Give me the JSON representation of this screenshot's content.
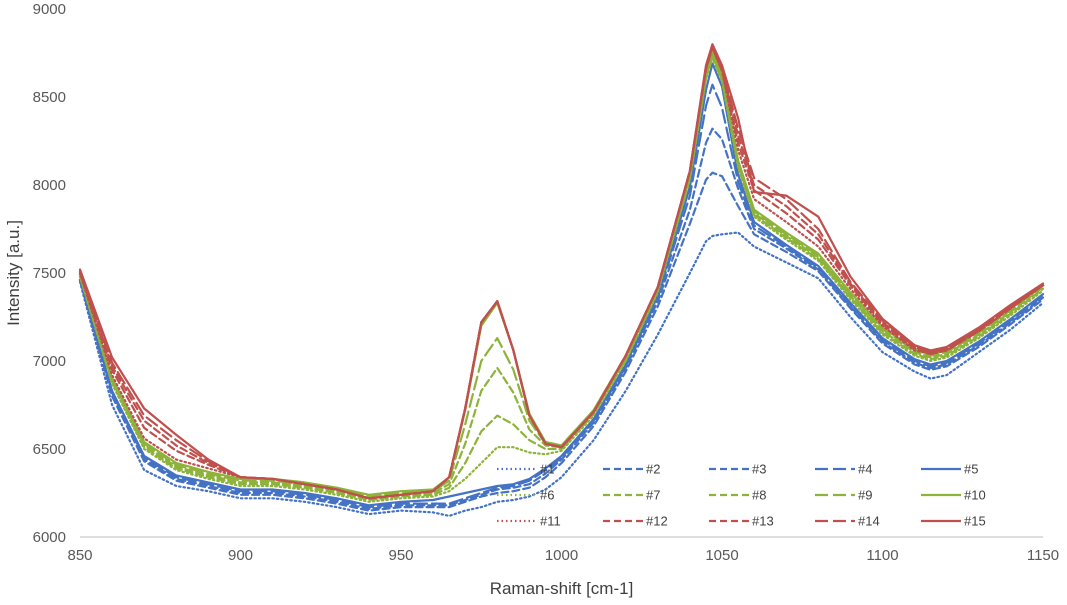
{
  "chart_data": {
    "type": "line",
    "xlabel": "Raman-shift [cm-1]",
    "ylabel": "Intensity [a.u.]",
    "xlim": [
      850,
      1150
    ],
    "ylim": [
      6000,
      9000
    ],
    "x_ticks": [
      850,
      900,
      950,
      1000,
      1050,
      1100,
      1150
    ],
    "y_ticks": [
      6000,
      6500,
      7000,
      7500,
      8000,
      8500,
      9000
    ],
    "grid": false,
    "legend_position": "bottom-right",
    "x": [
      850,
      860,
      870,
      880,
      890,
      900,
      910,
      920,
      930,
      940,
      950,
      960,
      965,
      970,
      975,
      980,
      985,
      990,
      995,
      1000,
      1010,
      1020,
      1030,
      1040,
      1045,
      1047,
      1050,
      1055,
      1060,
      1070,
      1080,
      1090,
      1100,
      1110,
      1115,
      1120,
      1130,
      1140,
      1150
    ],
    "series": [
      {
        "name": "#1",
        "color": "#4472C4",
        "dash": "dot",
        "values": [
          7450,
          6750,
          6380,
          6290,
          6260,
          6220,
          6220,
          6200,
          6170,
          6130,
          6150,
          6140,
          6120,
          6150,
          6170,
          6200,
          6210,
          6230,
          6270,
          6340,
          6550,
          6830,
          7150,
          7500,
          7680,
          7710,
          7720,
          7730,
          7650,
          7560,
          7470,
          7250,
          7050,
          6940,
          6900,
          6920,
          7050,
          7180,
          7330
        ]
      },
      {
        "name": "#2",
        "color": "#4472C4",
        "dash": "dash",
        "values": [
          7460,
          6800,
          6430,
          6320,
          6280,
          6240,
          6240,
          6220,
          6190,
          6150,
          6170,
          6170,
          6170,
          6200,
          6230,
          6250,
          6260,
          6280,
          6340,
          6420,
          6630,
          6940,
          7310,
          7780,
          8030,
          8070,
          8050,
          7880,
          7720,
          7620,
          7510,
          7300,
          7100,
          6980,
          6950,
          6970,
          7080,
          7210,
          7350
        ]
      },
      {
        "name": "#3",
        "color": "#4472C4",
        "dash": "dash",
        "values": [
          7460,
          6810,
          6440,
          6330,
          6290,
          6250,
          6250,
          6230,
          6200,
          6160,
          6180,
          6180,
          6180,
          6210,
          6240,
          6270,
          6280,
          6300,
          6360,
          6440,
          6650,
          6960,
          7340,
          7860,
          8240,
          8320,
          8260,
          7980,
          7750,
          7640,
          7520,
          7310,
          7110,
          6990,
          6960,
          6980,
          7090,
          7220,
          7360
        ]
      },
      {
        "name": "#4",
        "color": "#4472C4",
        "dash": "longdash",
        "values": [
          7460,
          6820,
          6450,
          6340,
          6300,
          6260,
          6260,
          6240,
          6210,
          6170,
          6190,
          6190,
          6190,
          6220,
          6250,
          6280,
          6290,
          6320,
          6380,
          6450,
          6660,
          6970,
          7360,
          7940,
          8450,
          8570,
          8440,
          8020,
          7770,
          7650,
          7530,
          7320,
          7120,
          7000,
          6970,
          6990,
          7100,
          7230,
          7370
        ]
      },
      {
        "name": "#5",
        "color": "#4472C4",
        "dash": "solid",
        "values": [
          7460,
          6830,
          6460,
          6350,
          6310,
          6270,
          6270,
          6250,
          6220,
          6180,
          6200,
          6210,
          6230,
          6250,
          6270,
          6290,
          6300,
          6330,
          6390,
          6460,
          6670,
          6980,
          7370,
          7990,
          8540,
          8690,
          8560,
          8060,
          7790,
          7660,
          7540,
          7330,
          7130,
          7010,
          6980,
          7000,
          7110,
          7240,
          7380
        ]
      },
      {
        "name": "#6",
        "color": "#8DB33A",
        "dash": "dot",
        "values": [
          7480,
          6870,
          6500,
          6380,
          6330,
          6290,
          6290,
          6270,
          6240,
          6200,
          6220,
          6230,
          6260,
          6330,
          6420,
          6510,
          6510,
          6480,
          6470,
          6490,
          6690,
          7000,
          7390,
          8030,
          8600,
          8720,
          8590,
          8100,
          7820,
          7690,
          7570,
          7350,
          7150,
          7030,
          7000,
          7020,
          7130,
          7260,
          7400
        ]
      },
      {
        "name": "#7",
        "color": "#8DB33A",
        "dash": "dash",
        "values": [
          7480,
          6880,
          6510,
          6390,
          6340,
          6300,
          6300,
          6280,
          6250,
          6210,
          6230,
          6240,
          6280,
          6420,
          6600,
          6690,
          6640,
          6550,
          6500,
          6500,
          6700,
          7010,
          7400,
          8040,
          8610,
          8730,
          8600,
          8110,
          7830,
          7700,
          7580,
          7360,
          7160,
          7040,
          7010,
          7030,
          7140,
          7270,
          7410
        ]
      },
      {
        "name": "#8",
        "color": "#8DB33A",
        "dash": "dash",
        "values": [
          7490,
          6890,
          6520,
          6400,
          6350,
          6310,
          6310,
          6290,
          6260,
          6220,
          6240,
          6250,
          6300,
          6530,
          6830,
          6960,
          6820,
          6610,
          6520,
          6510,
          6710,
          7020,
          7410,
          8050,
          8620,
          8740,
          8610,
          8120,
          7840,
          7710,
          7590,
          7370,
          7170,
          7050,
          7020,
          7040,
          7150,
          7280,
          7420
        ]
      },
      {
        "name": "#9",
        "color": "#8DB33A",
        "dash": "longdash",
        "values": [
          7490,
          6900,
          6530,
          6410,
          6360,
          6320,
          6320,
          6300,
          6270,
          6230,
          6250,
          6260,
          6320,
          6640,
          7000,
          7130,
          6950,
          6660,
          6530,
          6520,
          6720,
          7030,
          7420,
          8060,
          8630,
          8750,
          8620,
          8130,
          7850,
          7720,
          7600,
          7380,
          7180,
          7060,
          7030,
          7050,
          7160,
          7290,
          7430
        ]
      },
      {
        "name": "#10",
        "color": "#8DB33A",
        "dash": "solid",
        "values": [
          7490,
          6900,
          6540,
          6420,
          6370,
          6330,
          6330,
          6310,
          6280,
          6240,
          6260,
          6270,
          6340,
          6720,
          7200,
          7330,
          7060,
          6700,
          6540,
          6520,
          6720,
          7030,
          7420,
          8070,
          8640,
          8760,
          8630,
          8140,
          7860,
          7730,
          7610,
          7390,
          7190,
          7070,
          7040,
          7060,
          7170,
          7300,
          7440
        ]
      },
      {
        "name": "#11",
        "color": "#C0504D",
        "dash": "dot",
        "values": [
          7500,
          6920,
          6560,
          6440,
          6390,
          6340,
          6330,
          6300,
          6270,
          6220,
          6240,
          6260,
          6340,
          6730,
          7220,
          7340,
          7060,
          6690,
          6530,
          6510,
          6710,
          7030,
          7420,
          8080,
          8660,
          8780,
          8650,
          8200,
          7920,
          7790,
          7650,
          7410,
          7200,
          7060,
          7040,
          7060,
          7170,
          7300,
          7430
        ]
      },
      {
        "name": "#12",
        "color": "#C0504D",
        "dash": "dash",
        "values": [
          7500,
          6950,
          6620,
          6490,
          6410,
          6340,
          6330,
          6300,
          6270,
          6220,
          6240,
          6260,
          6340,
          6730,
          7220,
          7340,
          7060,
          6690,
          6530,
          6510,
          6710,
          7030,
          7420,
          8080,
          8660,
          8780,
          8650,
          8240,
          7970,
          7840,
          7690,
          7430,
          7210,
          7070,
          7040,
          7060,
          7170,
          7300,
          7430
        ]
      },
      {
        "name": "#13",
        "color": "#C0504D",
        "dash": "dash",
        "values": [
          7510,
          6970,
          6660,
          6520,
          6420,
          6340,
          6330,
          6300,
          6270,
          6220,
          6240,
          6260,
          6340,
          6730,
          7220,
          7340,
          7060,
          6690,
          6530,
          6510,
          6710,
          7030,
          7420,
          8080,
          8670,
          8790,
          8660,
          8280,
          8000,
          7880,
          7720,
          7440,
          7220,
          7080,
          7050,
          7070,
          7180,
          7310,
          7430
        ]
      },
      {
        "name": "#14",
        "color": "#C0504D",
        "dash": "longdash",
        "values": [
          7510,
          6990,
          6690,
          6550,
          6430,
          6340,
          6330,
          6300,
          6270,
          6220,
          6240,
          6260,
          6340,
          6730,
          7220,
          7340,
          7060,
          6690,
          6530,
          6510,
          6710,
          7030,
          7420,
          8080,
          8670,
          8790,
          8660,
          8320,
          8040,
          7920,
          7750,
          7450,
          7230,
          7080,
          7050,
          7070,
          7180,
          7310,
          7430
        ]
      },
      {
        "name": "#15",
        "color": "#C0504D",
        "dash": "solid",
        "values": [
          7520,
          7020,
          6730,
          6580,
          6440,
          6340,
          6330,
          6300,
          6270,
          6220,
          6240,
          6260,
          6340,
          6730,
          7220,
          7340,
          7060,
          6690,
          6530,
          6510,
          6710,
          7030,
          7420,
          8080,
          8680,
          8800,
          8680,
          8380,
          7960,
          7940,
          7820,
          7480,
          7240,
          7090,
          7060,
          7080,
          7190,
          7320,
          7440
        ]
      }
    ]
  }
}
